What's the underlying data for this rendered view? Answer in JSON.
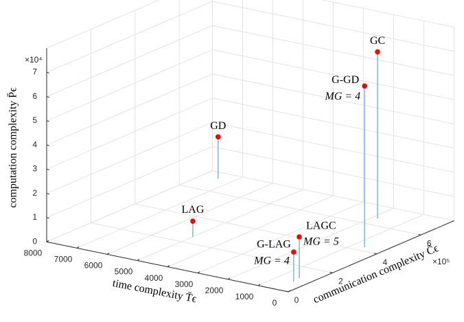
{
  "chart_data": {
    "type": "stem3",
    "xlabel": "time complexity T̄ϵ",
    "ylabel": "communication complexity C̄ϵ",
    "zlabel": "computation complexity P̄ϵ",
    "y_multiplier": "×10⁵",
    "z_multiplier": "×10⁴",
    "xlim": [
      0,
      8000
    ],
    "xticks": [
      0,
      1000,
      2000,
      3000,
      4000,
      5000,
      6000,
      7000,
      8000
    ],
    "ylim": [
      0,
      7.5
    ],
    "yticks": [
      0,
      2,
      4,
      6
    ],
    "zlim": [
      0,
      8
    ],
    "zticks": [
      0,
      1,
      2,
      3,
      4,
      5,
      6,
      7
    ],
    "grid": true,
    "marker_color": "#ff0000",
    "stem_color": "#5aa5d8",
    "points": [
      {
        "name": "GC",
        "x": 1830,
        "y": 6.54,
        "z": 6.88
      },
      {
        "name": "G-GD",
        "note": "MG = 4",
        "x": 620,
        "y": 4.3,
        "z": 6.66
      },
      {
        "name": "GD",
        "x": 7460,
        "y": 7.02,
        "z": 1.73
      },
      {
        "name": "LAG",
        "x": 4990,
        "y": 2.5,
        "z": 0.65
      },
      {
        "name": "LAGC",
        "note": "MG = 5",
        "x": 470,
        "y": 1.14,
        "z": 1.7
      },
      {
        "name": "G-LAG",
        "note": "MG = 4",
        "x": 414,
        "y": 0.81,
        "z": 1.22
      }
    ]
  }
}
